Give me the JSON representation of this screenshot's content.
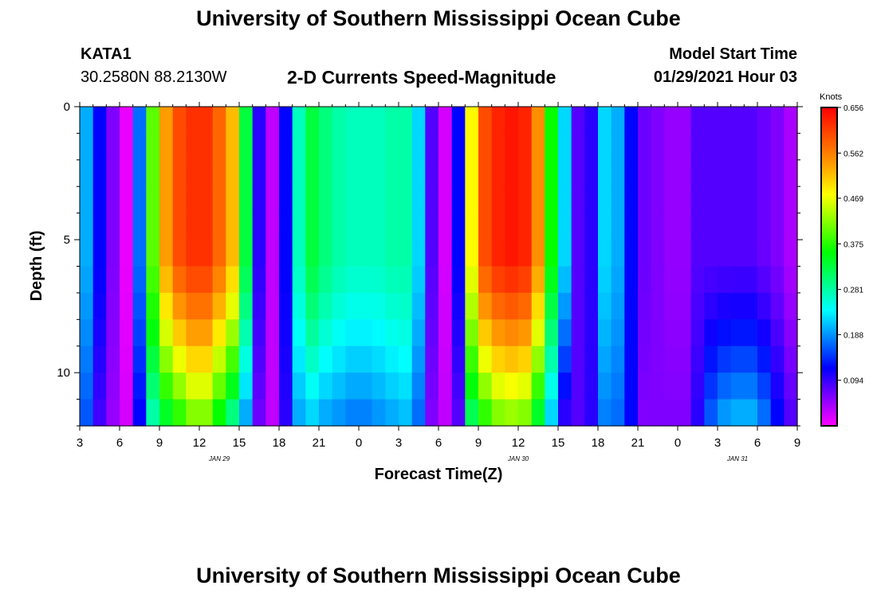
{
  "header": {
    "title": "University of Southern Mississippi Ocean Cube",
    "station": "KATA1",
    "coords": "30.2580N 88.2130W",
    "subtitle": "2-D Currents Speed-Magnitude",
    "model_label": "Model Start Time",
    "model_value": "01/29/2021 Hour 03"
  },
  "footer": {
    "title": "University of Southern Mississippi Ocean Cube"
  },
  "chart_data": {
    "type": "heatmap",
    "title": "2-D Currents Speed-Magnitude",
    "xlabel": "Forecast Time(Z)",
    "ylabel": "Depth (ft)",
    "x_unit": "forecast hour from 01/29/2021 03Z",
    "xlim": [
      0,
      54
    ],
    "ylim": [
      0,
      12
    ],
    "y_ticks": [
      0,
      5,
      10
    ],
    "x_ticks": [
      {
        "hour": 0,
        "label": "3"
      },
      {
        "hour": 3,
        "label": "6"
      },
      {
        "hour": 6,
        "label": "9"
      },
      {
        "hour": 9,
        "label": "12"
      },
      {
        "hour": 12,
        "label": "15"
      },
      {
        "hour": 15,
        "label": "18"
      },
      {
        "hour": 18,
        "label": "21"
      },
      {
        "hour": 21,
        "label": "0"
      },
      {
        "hour": 24,
        "label": "3"
      },
      {
        "hour": 27,
        "label": "6"
      },
      {
        "hour": 30,
        "label": "9"
      },
      {
        "hour": 33,
        "label": "12"
      },
      {
        "hour": 36,
        "label": "15"
      },
      {
        "hour": 39,
        "label": "18"
      },
      {
        "hour": 42,
        "label": "21"
      },
      {
        "hour": 45,
        "label": "0"
      },
      {
        "hour": 48,
        "label": "3"
      },
      {
        "hour": 51,
        "label": "6"
      },
      {
        "hour": 54,
        "label": "9"
      }
    ],
    "date_labels": [
      {
        "hour": 10.5,
        "label": "JAN 29"
      },
      {
        "hour": 33,
        "label": "JAN 30"
      },
      {
        "hour": 49.5,
        "label": "JAN 31"
      }
    ],
    "colorbar": {
      "unit": "Knots",
      "min": 0.0,
      "max": 0.656,
      "ticks": [
        "0.656",
        "0.562",
        "0.469",
        "0.375",
        "0.281",
        "0.188",
        "0.094"
      ],
      "tick_values": [
        0.656,
        0.562,
        0.469,
        0.375,
        0.281,
        0.188,
        0.094
      ],
      "colors": [
        "#ff00ff",
        "#8000ff",
        "#0000ff",
        "#0080ff",
        "#00ffff",
        "#00ff80",
        "#00ff00",
        "#80ff00",
        "#ffff00",
        "#ffa000",
        "#ff5000",
        "#ff0000"
      ]
    },
    "depth_rows": 12,
    "time_columns": 54,
    "speed_profile_knots": [
      [
        0,
        0.2,
        0.16
      ],
      [
        1,
        0.12,
        0.09
      ],
      [
        2,
        0.06,
        0.05
      ],
      [
        3,
        0.01,
        0.02
      ],
      [
        4,
        0.17,
        0.12
      ],
      [
        5,
        0.4,
        0.28
      ],
      [
        6,
        0.54,
        0.34
      ],
      [
        7,
        0.6,
        0.38
      ],
      [
        8,
        0.62,
        0.42
      ],
      [
        9,
        0.62,
        0.42
      ],
      [
        10,
        0.58,
        0.36
      ],
      [
        11,
        0.52,
        0.3
      ],
      [
        12,
        0.33,
        0.2
      ],
      [
        13,
        0.1,
        0.07
      ],
      [
        14,
        0.03,
        0.03
      ],
      [
        15,
        0.12,
        0.1
      ],
      [
        16,
        0.27,
        0.2
      ],
      [
        17,
        0.33,
        0.22
      ],
      [
        18,
        0.3,
        0.2
      ],
      [
        19,
        0.28,
        0.19
      ],
      [
        20,
        0.27,
        0.18
      ],
      [
        21,
        0.27,
        0.18
      ],
      [
        22,
        0.27,
        0.19
      ],
      [
        23,
        0.28,
        0.2
      ],
      [
        24,
        0.28,
        0.21
      ],
      [
        25,
        0.22,
        0.17
      ],
      [
        26,
        0.08,
        0.06
      ],
      [
        27,
        0.02,
        0.03
      ],
      [
        28,
        0.12,
        0.08
      ],
      [
        29,
        0.48,
        0.32
      ],
      [
        30,
        0.6,
        0.38
      ],
      [
        31,
        0.63,
        0.42
      ],
      [
        32,
        0.64,
        0.43
      ],
      [
        33,
        0.63,
        0.42
      ],
      [
        34,
        0.55,
        0.34
      ],
      [
        35,
        0.36,
        0.22
      ],
      [
        36,
        0.22,
        0.1
      ],
      [
        37,
        0.08,
        0.08
      ],
      [
        38,
        0.1,
        0.1
      ],
      [
        39,
        0.22,
        0.18
      ],
      [
        40,
        0.2,
        0.17
      ],
      [
        41,
        0.12,
        0.12
      ],
      [
        42,
        0.07,
        0.06
      ],
      [
        43,
        0.06,
        0.06
      ],
      [
        44,
        0.05,
        0.06
      ],
      [
        45,
        0.05,
        0.06
      ],
      [
        46,
        0.08,
        0.1
      ],
      [
        47,
        0.08,
        0.16
      ],
      [
        48,
        0.08,
        0.19
      ],
      [
        49,
        0.08,
        0.2
      ],
      [
        50,
        0.08,
        0.2
      ],
      [
        51,
        0.07,
        0.17
      ],
      [
        52,
        0.06,
        0.12
      ],
      [
        53,
        0.04,
        0.08
      ]
    ]
  }
}
